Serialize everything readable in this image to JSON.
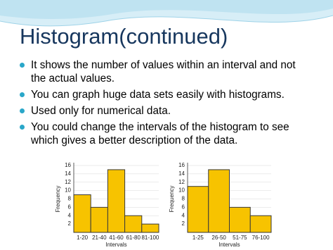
{
  "slide": {
    "title": "Histogram(continued)",
    "bullets": [
      "It shows the number of values within an interval and not the actual values.",
      "You can graph huge data sets easily with histograms.",
      "Used only for numerical data.",
      "You could change the intervals of the histogram to see which gives a better description of the data."
    ]
  },
  "chart_data": [
    {
      "type": "bar",
      "x_label": "Intervals",
      "y_label": "Frequency",
      "categories": [
        "1-20",
        "21-40",
        "41-60",
        "61-80",
        "81-100"
      ],
      "values": [
        9,
        6,
        15,
        4,
        2
      ],
      "color": "#f7c300",
      "ylim": [
        0,
        16
      ],
      "yticks": [
        2,
        4,
        6,
        8,
        10,
        12,
        14,
        16
      ],
      "grid": true
    },
    {
      "type": "bar",
      "x_label": "Intervals",
      "y_label": "Frequency",
      "categories": [
        "1-25",
        "26-50",
        "51-75",
        "76-100"
      ],
      "values": [
        11,
        15,
        6,
        4
      ],
      "color": "#f7c300",
      "ylim": [
        0,
        16
      ],
      "yticks": [
        2,
        4,
        6,
        8,
        10,
        12,
        14,
        16
      ],
      "grid": true
    }
  ]
}
